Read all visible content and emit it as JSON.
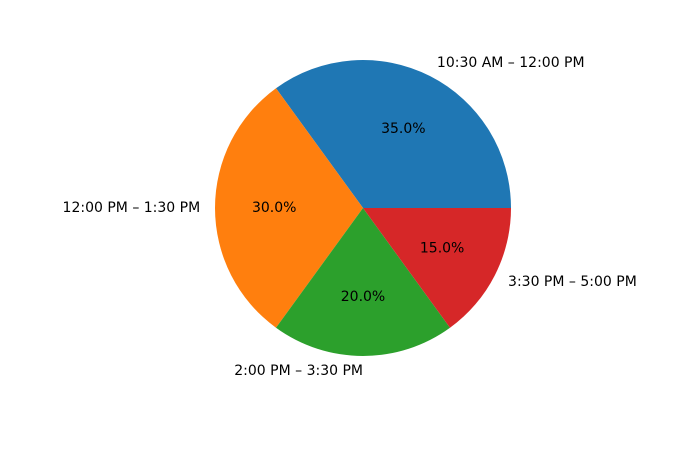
{
  "chart_data": {
    "type": "pie",
    "title": "",
    "start_angle_deg": 0,
    "counterclockwise": true,
    "autopct_format": "{:.1f}%",
    "slices": [
      {
        "label": "10:30 AM – 12:00 PM",
        "value": 35.0,
        "percent_label": "35.0%",
        "color": "#1f77b4"
      },
      {
        "label": "12:00 PM – 1:30 PM",
        "value": 30.0,
        "percent_label": "30.0%",
        "color": "#ff7f0e"
      },
      {
        "label": "2:00 PM – 3:30 PM",
        "value": 20.0,
        "percent_label": "20.0%",
        "color": "#2ca02c"
      },
      {
        "label": "3:30 PM – 5:00 PM",
        "value": 15.0,
        "percent_label": "15.0%",
        "color": "#d62728"
      }
    ],
    "legend": "none"
  }
}
